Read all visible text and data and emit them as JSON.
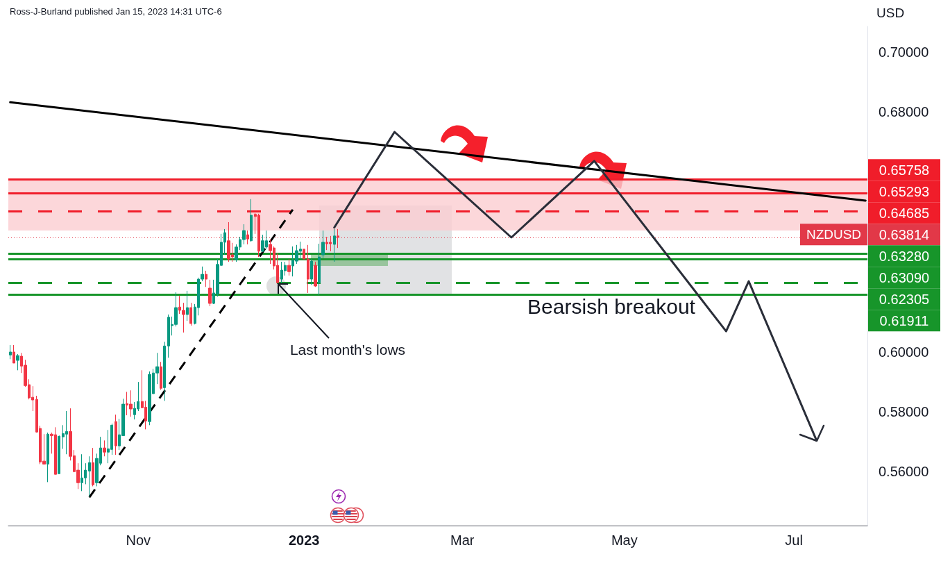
{
  "chart_data": {
    "type": "candlestick",
    "title": "Ross-J-Burland published Jan 15, 2023 14:31 UTC-6",
    "ylabel": "USD",
    "categories": [
      null,
      null,
      null,
      null,
      null,
      null,
      null,
      null,
      null,
      null,
      null,
      null,
      null,
      null,
      null,
      null,
      null,
      null,
      null,
      null,
      null,
      null,
      null,
      null,
      null,
      null,
      null,
      null,
      null,
      null,
      null,
      null,
      null,
      null,
      "Nov",
      null,
      null,
      null,
      null,
      null,
      null,
      null,
      null,
      null,
      null,
      null,
      null,
      null,
      null,
      null,
      null,
      null,
      null,
      null,
      null,
      null,
      null,
      null,
      null,
      null,
      null,
      null,
      null,
      null,
      null,
      null,
      null,
      null,
      null,
      null,
      null,
      null,
      null,
      null,
      null,
      null,
      null,
      null,
      "2023",
      null,
      null,
      null,
      null,
      null,
      null,
      null,
      null,
      null,
      null,
      null,
      null,
      null,
      null,
      null,
      null,
      null,
      null,
      null,
      null,
      null,
      null,
      null,
      null,
      null,
      null,
      null,
      null,
      null,
      null,
      null,
      null,
      null,
      null,
      null,
      null,
      null,
      null,
      null,
      null,
      null,
      "Mar",
      null,
      null,
      null,
      null,
      null,
      null,
      null,
      null,
      null,
      null,
      null,
      null,
      null,
      null,
      null,
      null,
      null,
      null,
      null,
      null,
      null,
      null,
      null,
      null,
      null,
      null,
      null,
      null,
      null,
      null,
      null,
      null,
      null,
      null,
      null,
      null,
      null,
      null,
      null,
      null,
      null,
      null,
      "May",
      null,
      null,
      null,
      null,
      null,
      null,
      null,
      null,
      null,
      null,
      null,
      null,
      null,
      null,
      null,
      null,
      null,
      null,
      null,
      null,
      null,
      null,
      null,
      null,
      null,
      null,
      null,
      null,
      null,
      null,
      null,
      null,
      null,
      null,
      null,
      null,
      null,
      null,
      null,
      null,
      null,
      null,
      null,
      null,
      "Jul",
      null,
      null,
      null,
      null,
      null,
      null,
      null,
      null,
      null,
      null,
      null,
      null,
      null,
      null,
      null,
      null,
      null,
      null,
      null
    ],
    "series": [
      {
        "name": "NZDUSD",
        "ohlc": [
          [
            0.5989,
            0.6022,
            0.5975,
            0.5999
          ],
          [
            0.5999,
            0.6022,
            0.5962,
            0.5962
          ],
          [
            0.5971,
            0.5992,
            0.5938,
            0.5987
          ],
          [
            0.5985,
            0.5996,
            0.5929,
            0.5952
          ],
          [
            0.5955,
            0.5973,
            0.5883,
            0.5887
          ],
          [
            0.589,
            0.5908,
            0.5841,
            0.5846
          ],
          [
            0.5848,
            0.5885,
            0.5802,
            0.5839
          ],
          [
            0.5841,
            0.5853,
            0.573,
            0.5732
          ],
          [
            0.5744,
            0.5753,
            0.5625,
            0.5632
          ],
          [
            0.5635,
            0.5725,
            0.5625,
            0.5625
          ],
          [
            0.5625,
            0.573,
            0.5565,
            0.5725
          ],
          [
            0.5725,
            0.573,
            0.566,
            0.572
          ],
          [
            0.5723,
            0.5748,
            0.5591,
            0.5591
          ],
          [
            0.5593,
            0.572,
            0.5593,
            0.5718
          ],
          [
            0.5716,
            0.5755,
            0.5676,
            0.5727
          ],
          [
            0.5725,
            0.5802,
            0.5658,
            0.5734
          ],
          [
            0.5734,
            0.5811,
            0.5637,
            0.5651
          ],
          [
            0.5653,
            0.5672,
            0.5598,
            0.56
          ],
          [
            0.5605,
            0.5628,
            0.5542,
            0.5563
          ],
          [
            0.5563,
            0.5658,
            0.5535,
            0.5579
          ],
          [
            0.5579,
            0.5628,
            0.5558,
            0.5605
          ],
          [
            0.5602,
            0.5651,
            0.5516,
            0.563
          ],
          [
            0.563,
            0.5679,
            0.5551,
            0.5556
          ],
          [
            0.5563,
            0.566,
            0.5551,
            0.5644
          ],
          [
            0.5628,
            0.5716,
            0.5621,
            0.5679
          ],
          [
            0.5679,
            0.5704,
            0.5651,
            0.5665
          ],
          [
            0.5665,
            0.5739,
            0.5628,
            0.5676
          ],
          [
            0.5674,
            0.576,
            0.5656,
            0.5755
          ],
          [
            0.5767,
            0.579,
            0.5656,
            0.5686
          ],
          [
            0.5686,
            0.5776,
            0.5672,
            0.5723
          ],
          [
            0.572,
            0.5843,
            0.572,
            0.5825
          ],
          [
            0.5827,
            0.5866,
            0.5788,
            0.5822
          ],
          [
            0.5825,
            0.5871,
            0.5783,
            0.5809
          ],
          [
            0.579,
            0.5832,
            0.5774,
            0.5811
          ],
          [
            0.5809,
            0.5899,
            0.5802,
            0.5834
          ],
          [
            0.5834,
            0.5938,
            0.5813,
            0.5813
          ],
          [
            0.5815,
            0.5836,
            0.5741,
            0.5769
          ],
          [
            0.5767,
            0.5934,
            0.5755,
            0.5924
          ],
          [
            0.586,
            0.5943,
            0.586,
            0.5929
          ],
          [
            0.5929,
            0.5996,
            0.5892,
            0.595
          ],
          [
            0.595,
            0.5966,
            0.5873,
            0.5878
          ],
          [
            0.588,
            0.6033,
            0.5836,
            0.6019
          ],
          [
            0.6019,
            0.6124,
            0.598,
            0.6115
          ],
          [
            0.6087,
            0.6117,
            0.6054,
            0.6091
          ],
          [
            0.6091,
            0.6198,
            0.6084,
            0.6147
          ],
          [
            0.6149,
            0.6186,
            0.6126,
            0.6138
          ],
          [
            0.6138,
            0.6163,
            0.6064,
            0.6124
          ],
          [
            0.6124,
            0.6203,
            0.6103,
            0.6147
          ],
          [
            0.6147,
            0.6163,
            0.6087,
            0.6094
          ],
          [
            0.6094,
            0.6159,
            0.6091,
            0.6149
          ],
          [
            0.6147,
            0.6247,
            0.6121,
            0.6242
          ],
          [
            0.6242,
            0.6284,
            0.6235,
            0.6258
          ],
          [
            0.6258,
            0.627,
            0.6216,
            0.6242
          ],
          [
            0.6212,
            0.624,
            0.6152,
            0.6161
          ],
          [
            0.6161,
            0.624,
            0.6159,
            0.6196
          ],
          [
            0.6193,
            0.6309,
            0.6184,
            0.6291
          ],
          [
            0.6288,
            0.6393,
            0.6286,
            0.6365
          ],
          [
            0.6365,
            0.6409,
            0.6323,
            0.6397
          ],
          [
            0.637,
            0.6432,
            0.63,
            0.6309
          ],
          [
            0.6323,
            0.6363,
            0.63,
            0.6316
          ],
          [
            0.6307,
            0.6358,
            0.63,
            0.6349
          ],
          [
            0.6349,
            0.6383,
            0.6339,
            0.6374
          ],
          [
            0.6374,
            0.6425,
            0.6358,
            0.6404
          ],
          [
            0.639,
            0.6404,
            0.6358,
            0.6376
          ],
          [
            0.637,
            0.6509,
            0.6367,
            0.6455
          ],
          [
            0.6458,
            0.6462,
            0.6393,
            0.6451
          ],
          [
            0.6455,
            0.646,
            0.6316,
            0.6335
          ],
          [
            0.6335,
            0.639,
            0.6332,
            0.637
          ],
          [
            0.6349,
            0.6404,
            0.6344,
            0.637
          ],
          [
            0.6358,
            0.6374,
            0.6293,
            0.6337
          ],
          [
            0.6346,
            0.6351,
            0.6274,
            0.6286
          ],
          [
            0.6288,
            0.6328,
            0.6228,
            0.623
          ],
          [
            0.6242,
            0.63,
            0.623,
            0.6272
          ],
          [
            0.627,
            0.63,
            0.6254,
            0.6288
          ],
          [
            0.6288,
            0.6309,
            0.6254,
            0.6267
          ],
          [
            0.6286,
            0.6351,
            0.6251,
            0.6305
          ],
          [
            0.6302,
            0.6356,
            0.6293,
            0.6337
          ],
          [
            0.6335,
            0.6367,
            0.6309,
            0.6342
          ],
          [
            0.6342,
            0.6342,
            0.6309,
            0.6309
          ],
          [
            0.6309,
            0.6356,
            0.6196,
            0.6242
          ],
          [
            0.6242,
            0.6309,
            0.6223,
            0.6302
          ],
          [
            0.6288,
            0.63,
            0.6216,
            0.6219
          ],
          [
            0.623,
            0.636,
            0.6189,
            0.6316
          ],
          [
            0.6323,
            0.6404,
            0.6312,
            0.6365
          ],
          [
            0.6365,
            0.6383,
            0.6339,
            0.636
          ],
          [
            0.6365,
            0.6386,
            0.6335,
            0.636
          ],
          [
            0.6358,
            0.6409,
            0.63,
            0.6386
          ],
          [
            0.6386,
            0.6409,
            0.6346,
            0.63814
          ],
          null,
          null,
          null,
          null,
          null,
          null,
          null,
          null,
          null,
          null,
          null,
          null,
          null,
          null,
          null,
          null,
          null,
          null,
          null,
          null,
          null,
          null,
          null,
          null,
          null,
          null,
          null,
          null,
          null,
          null,
          null,
          null,
          null,
          null,
          null,
          null,
          null,
          null,
          null,
          null,
          null,
          null,
          null,
          null,
          null,
          null,
          null,
          null,
          null,
          null,
          null,
          null,
          null,
          null,
          null,
          null,
          null,
          null,
          null,
          null,
          null,
          null,
          null,
          null,
          null,
          null,
          null,
          null,
          null,
          null,
          null,
          null,
          null,
          null,
          null,
          null,
          null,
          null,
          null,
          null,
          null,
          null,
          null,
          null,
          null,
          null,
          null,
          null,
          null,
          null,
          null,
          null,
          null,
          null,
          null,
          null,
          null,
          null,
          null,
          null,
          null,
          null,
          null,
          null,
          null,
          null,
          null,
          null,
          null,
          null,
          null,
          null,
          null,
          null,
          null,
          null,
          null,
          null,
          null,
          null,
          null,
          null,
          null,
          null,
          null,
          null,
          null,
          null,
          null,
          null,
          null,
          null,
          null,
          null,
          null,
          null,
          null,
          null,
          null,
          null
        ]
      },
      {
        "type": "line",
        "color": "#000000",
        "values": [
          0.6832,
          null,
          null,
          null,
          null,
          null,
          null,
          null,
          null,
          null,
          null,
          null,
          null,
          null,
          null,
          null,
          null,
          null,
          null,
          null,
          null,
          null,
          null,
          null,
          null,
          null,
          null,
          null,
          null,
          null,
          null,
          null,
          null,
          null,
          null,
          null,
          null,
          null,
          null,
          null,
          null,
          null,
          null,
          null,
          null,
          null,
          null,
          null,
          null,
          null,
          null,
          null,
          null,
          null,
          null,
          null,
          null,
          null,
          null,
          null,
          null,
          null,
          null,
          null,
          null,
          null,
          null,
          null,
          null,
          null,
          null,
          null,
          null,
          null,
          null,
          null,
          null,
          null,
          null,
          null,
          null,
          null,
          null,
          null,
          null,
          null,
          null,
          null,
          null,
          null,
          null,
          null,
          null,
          null,
          null,
          null,
          null,
          null,
          null,
          null,
          null,
          null,
          null,
          null,
          null,
          null,
          null,
          null,
          null,
          null,
          null,
          null,
          null,
          null,
          null,
          null,
          null,
          null,
          null,
          null,
          null,
          null,
          null,
          null,
          null,
          null,
          null,
          null,
          null,
          null,
          null,
          null,
          null,
          null,
          null,
          null,
          null,
          null,
          null,
          null,
          null,
          null,
          null,
          null,
          null,
          null,
          null,
          null,
          null,
          null,
          null,
          null,
          null,
          null,
          null,
          null,
          null,
          null,
          null,
          null,
          null,
          null,
          null,
          null,
          null,
          null,
          null,
          null,
          null,
          null,
          null,
          null,
          null,
          null,
          null,
          null,
          null,
          null,
          null,
          null,
          null,
          null,
          null,
          null,
          null,
          null,
          null,
          null,
          null,
          null,
          null,
          null,
          null,
          null,
          null,
          null,
          null,
          null,
          null,
          null,
          null,
          null,
          null,
          null,
          null,
          null,
          null,
          null,
          null,
          null,
          null,
          null,
          null,
          null,
          null,
          null,
          null,
          null,
          null,
          null,
          null,
          null,
          null,
          null,
          null,
          null,
          null,
          0.6504
        ]
      },
      {
        "type": "line",
        "color": "#000000",
        "line_style": "dashed",
        "values": [
          null,
          null,
          null,
          null,
          null,
          null,
          null,
          null,
          null,
          null,
          null,
          null,
          null,
          null,
          null,
          null,
          null,
          null,
          null,
          null,
          null,
          0.5514,
          null,
          null,
          null,
          null,
          null,
          null,
          null,
          null,
          null,
          null,
          null,
          null,
          null,
          null,
          null,
          null,
          null,
          null,
          null,
          null,
          null,
          null,
          null,
          null,
          null,
          null,
          null,
          null,
          null,
          null,
          null,
          null,
          null,
          null,
          null,
          null,
          null,
          null,
          null,
          null,
          null,
          null,
          null,
          null,
          null,
          null,
          null,
          null,
          null,
          null,
          null,
          null,
          null,
          0.6474,
          null,
          null,
          null,
          null,
          null,
          null,
          null,
          null,
          null,
          null,
          null,
          null,
          null,
          null,
          null,
          null,
          null,
          null,
          null,
          null,
          null,
          null,
          null,
          null,
          null,
          null,
          null,
          null,
          null,
          null,
          null,
          null,
          null,
          null,
          null,
          null,
          null,
          null,
          null,
          null,
          null,
          null,
          null,
          null,
          null,
          null,
          null,
          null,
          null,
          null,
          null,
          null,
          null,
          null,
          null,
          null,
          null,
          null,
          null,
          null,
          null,
          null,
          null,
          null,
          null,
          null,
          null,
          null,
          null,
          null,
          null,
          null,
          null,
          null,
          null,
          null,
          null,
          null,
          null,
          null,
          null,
          null,
          null,
          null,
          null,
          null,
          null,
          null,
          null,
          null,
          null,
          null,
          null,
          null,
          null,
          null,
          null,
          null,
          null,
          null,
          null,
          null,
          null,
          null,
          null,
          null,
          null,
          null,
          null,
          null,
          null,
          null,
          null,
          null,
          null,
          null,
          null,
          null,
          null,
          null,
          null,
          null,
          null,
          null,
          null,
          null,
          null,
          null,
          null,
          null,
          null,
          null,
          null,
          null,
          null,
          null,
          null,
          null,
          null,
          null,
          null,
          null,
          null,
          null,
          null,
          null,
          null,
          null,
          null,
          null,
          null,
          null
        ]
      },
      {
        "type": "line",
        "color": "#2a2e39",
        "values": [
          null,
          null,
          null,
          null,
          null,
          null,
          null,
          null,
          null,
          null,
          null,
          null,
          null,
          null,
          null,
          null,
          null,
          null,
          null,
          null,
          null,
          null,
          null,
          null,
          null,
          null,
          null,
          null,
          null,
          null,
          null,
          null,
          null,
          null,
          null,
          null,
          null,
          null,
          null,
          null,
          null,
          null,
          null,
          null,
          null,
          null,
          null,
          null,
          null,
          null,
          null,
          null,
          null,
          null,
          null,
          null,
          null,
          null,
          null,
          null,
          null,
          null,
          null,
          null,
          null,
          null,
          null,
          null,
          null,
          null,
          null,
          null,
          null,
          null,
          null,
          null,
          null,
          null,
          null,
          null,
          null,
          null,
          null,
          null,
          null,
          null,
          0.6414,
          null,
          null,
          null,
          null,
          null,
          null,
          null,
          null,
          null,
          null,
          null,
          null,
          null,
          null,
          null,
          0.6733,
          null,
          null,
          null,
          null,
          null,
          null,
          null,
          null,
          null,
          null,
          null,
          null,
          null,
          null,
          null,
          null,
          null,
          null,
          null,
          null,
          null,
          null,
          null,
          null,
          null,
          null,
          null,
          null,
          null,
          null,
          0.6381,
          null,
          null,
          null,
          null,
          null,
          null,
          null,
          null,
          null,
          null,
          null,
          null,
          null,
          null,
          null,
          null,
          null,
          null,
          null,
          null,
          null,
          0.6636,
          null,
          null,
          null,
          null,
          null,
          null,
          null,
          null,
          null,
          null,
          null,
          null,
          null,
          null,
          null,
          null,
          null,
          null,
          null,
          null,
          null,
          null,
          null,
          null,
          null,
          null,
          null,
          null,
          null,
          null,
          null,
          null,
          null,
          null,
          0.6068,
          null,
          null,
          null,
          null,
          null,
          0.6235,
          null,
          null,
          null,
          null,
          null,
          null,
          null,
          null,
          null,
          null,
          null,
          null,
          null,
          null,
          null,
          null,
          null,
          0.5704,
          null,
          null,
          null,
          null,
          null,
          null,
          null,
          null,
          null,
          null,
          null,
          null,
          null
        ]
      }
    ],
    "ylim": [
      0.542,
      0.7085
    ],
    "yticks": [
      {
        "value": 0.56,
        "label": "0.56000"
      },
      {
        "value": 0.58,
        "label": "0.58000"
      },
      {
        "value": 0.6,
        "label": "0.60000"
      },
      {
        "value": 0.68,
        "label": "0.68000"
      },
      {
        "value": 0.7,
        "label": "0.70000"
      }
    ],
    "ref_lines": [
      {
        "axis": "y",
        "value": 0.65758,
        "label": "0.65758",
        "color": "#f01d2a"
      },
      {
        "axis": "y",
        "value": 0.65293,
        "label": "0.65293",
        "color": "#f01d2a"
      },
      {
        "axis": "y",
        "value": 0.64685,
        "label": "0.64685",
        "color": "#f01d2a",
        "line_style": "dashed"
      },
      {
        "axis": "y",
        "value": 0.63814,
        "label": "0.63814",
        "color": "#e23848",
        "line_style": "dotted"
      },
      {
        "axis": "y",
        "value": 0.6328,
        "label": "0.63280",
        "color": "#17952a"
      },
      {
        "axis": "y",
        "value": 0.6309,
        "label": "0.63090",
        "color": "#17952a"
      },
      {
        "axis": "y",
        "value": 0.62305,
        "label": "0.62305",
        "color": "#17952a",
        "line_style": "dashed"
      },
      {
        "axis": "y",
        "value": 0.61911,
        "label": "0.61911",
        "color": "#17952a"
      }
    ],
    "bands": [
      {
        "axis": "y",
        "from": 0.6404,
        "to": 0.65758,
        "color": "#fbcdd1"
      }
    ],
    "annotations": [
      "Last month's lows",
      "Bearsish breakout"
    ],
    "marker": "none"
  }
}
